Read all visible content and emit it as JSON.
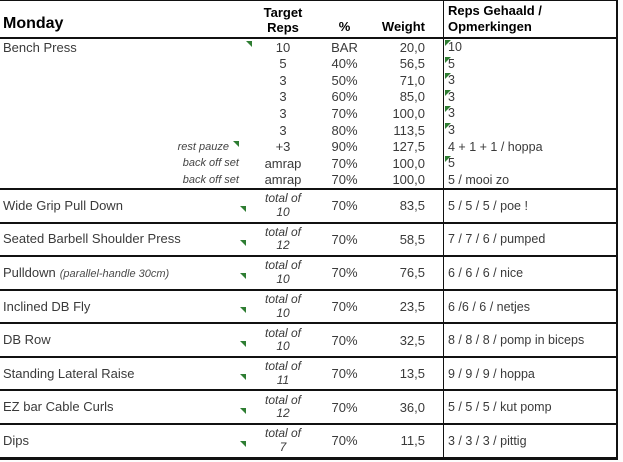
{
  "header": {
    "day": "Monday",
    "target_line1": "Target",
    "target_line2": "Reps",
    "pct": "%",
    "weight": "Weight",
    "result_line1": "Reps Gehaald /",
    "result_line2": "Opmerkingen"
  },
  "icons": {
    "comment_indicator": "small green triangle (cell comment marker)"
  },
  "colors": {
    "marker_green": "#2e7d32",
    "border": "#111111",
    "text": "#3a3a3a"
  },
  "bench": {
    "name": "Bench Press",
    "sets": [
      {
        "label": "",
        "target": "10",
        "pct": "BAR",
        "weight": "20,0",
        "result": "10"
      },
      {
        "label": "",
        "target": "5",
        "pct": "40%",
        "weight": "56,5",
        "result": "5"
      },
      {
        "label": "",
        "target": "3",
        "pct": "50%",
        "weight": "71,0",
        "result": "3"
      },
      {
        "label": "",
        "target": "3",
        "pct": "60%",
        "weight": "85,0",
        "result": "3"
      },
      {
        "label": "",
        "target": "3",
        "pct": "70%",
        "weight": "100,0",
        "result": "3"
      },
      {
        "label": "",
        "target": "3",
        "pct": "80%",
        "weight": "113,5",
        "result": "3"
      },
      {
        "label": "rest pauze",
        "target": "+3",
        "pct": "90%",
        "weight": "127,5",
        "result": "4 + 1 + 1 / hoppa"
      },
      {
        "label": "back off set",
        "target": "amrap",
        "pct": "70%",
        "weight": "100,0",
        "result": "5"
      },
      {
        "label": "back off set",
        "target": "amrap",
        "pct": "70%",
        "weight": "100,0",
        "result": "5 / mooi zo"
      }
    ]
  },
  "exercises": [
    {
      "name": "Wide Grip Pull Down",
      "note": "",
      "total_label": "total of",
      "total": "10",
      "pct": "70%",
      "weight": "83,5",
      "result": "5 / 5 / 5 / poe !"
    },
    {
      "name": "Seated Barbell Shoulder Press",
      "note": "",
      "total_label": "total of",
      "total": "12",
      "pct": "70%",
      "weight": "58,5",
      "result": "7 / 7 / 6 / pumped"
    },
    {
      "name": "Pulldown",
      "note": "(parallel-handle 30cm)",
      "total_label": "total of",
      "total": "10",
      "pct": "70%",
      "weight": "76,5",
      "result": "6 / 6 / 6 / nice"
    },
    {
      "name": "Inclined DB Fly",
      "note": "",
      "total_label": "total of",
      "total": "10",
      "pct": "70%",
      "weight": "23,5",
      "result": "6 /6 / 6 / netjes"
    },
    {
      "name": "DB Row",
      "note": "",
      "total_label": "total of",
      "total": "10",
      "pct": "70%",
      "weight": "32,5",
      "result": "8 / 8 / 8 / pomp in biceps"
    },
    {
      "name": "Standing Lateral Raise",
      "note": "",
      "total_label": "total of",
      "total": "11",
      "pct": "70%",
      "weight": "13,5",
      "result": "9 / 9 / 9 / hoppa"
    },
    {
      "name": "EZ bar Cable Curls",
      "note": "",
      "total_label": "total of",
      "total": "12",
      "pct": "70%",
      "weight": "36,0",
      "result": "5 / 5 / 5 / kut pomp"
    },
    {
      "name": "Dips",
      "note": "",
      "total_label": "total of",
      "total": "7",
      "pct": "70%",
      "weight": "11,5",
      "result": "3 / 3 / 3 / pittig"
    }
  ]
}
